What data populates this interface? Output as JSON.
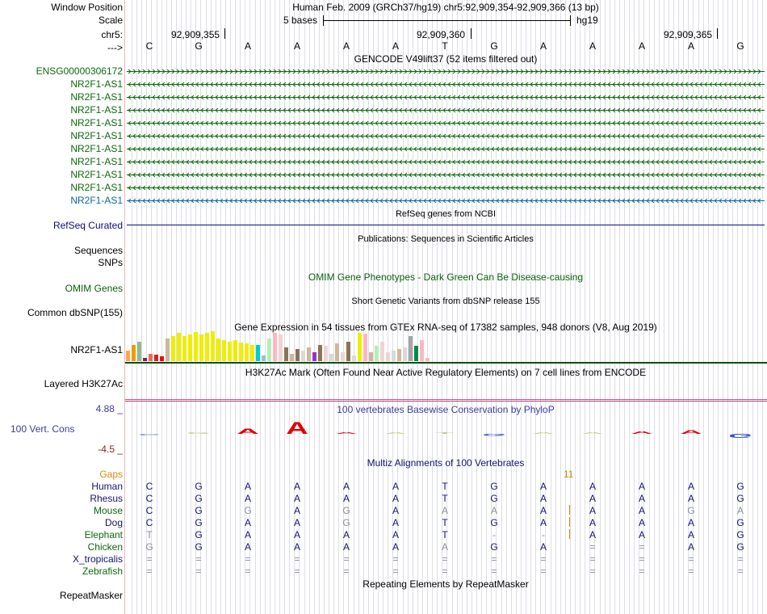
{
  "header": {
    "window_position_label": "Window Position",
    "window_position_text": "Human Feb. 2009 (GRCh37/hg19)   chr5:92,909,354-92,909,366 (13 bp)",
    "scale_label": "Scale",
    "scale_text": "5 bases",
    "scale_assembly": "hg19",
    "chrom_label": "chr5:",
    "coord_ticks": [
      "92,909,355",
      "92,909,360",
      "92,909,365"
    ],
    "strand_label": "--->"
  },
  "sequence": [
    "C",
    "G",
    "A",
    "A",
    "A",
    "A",
    "T",
    "G",
    "A",
    "A",
    "A",
    "A",
    "G"
  ],
  "gencode": {
    "title": "GENCODE V49lift37 (52 items filtered out)",
    "items": [
      {
        "name": "ENSG00000306172",
        "direction": "right"
      },
      {
        "name": "NR2F1-AS1",
        "direction": "left"
      },
      {
        "name": "NR2F1-AS1",
        "direction": "left"
      },
      {
        "name": "NR2F1-AS1",
        "direction": "left"
      },
      {
        "name": "NR2F1-AS1",
        "direction": "left"
      },
      {
        "name": "NR2F1-AS1",
        "direction": "left"
      },
      {
        "name": "NR2F1-AS1",
        "direction": "left"
      },
      {
        "name": "NR2F1-AS1",
        "direction": "left"
      },
      {
        "name": "NR2F1-AS1",
        "direction": "left"
      },
      {
        "name": "NR2F1-AS1",
        "direction": "left"
      },
      {
        "name": "NR2F1-AS1",
        "direction": "left"
      }
    ]
  },
  "refseq": {
    "title": "RefSeq genes from NCBI",
    "label": "RefSeq Curated"
  },
  "publications": {
    "title": "Publications: Sequences in Scientific Articles",
    "label1": "Sequences",
    "label2": "SNPs"
  },
  "omim": {
    "title": "OMIM Gene Phenotypes - Dark Green Can Be Disease-causing",
    "label": "OMIM Genes"
  },
  "dbsnp": {
    "title": "Short Genetic Variants from dbSNP release 155",
    "label": "Common dbSNP(155)"
  },
  "gtex": {
    "title": "Gene Expression in 54 tissues from GTEx RNA-seq of 17382 samples, 948 donors (V8, Aug 2019)",
    "label": "NR2F1-AS1",
    "bars": [
      {
        "v": 0.35,
        "c": "#ffa54f"
      },
      {
        "v": 0.55,
        "c": "#ee9a00"
      },
      {
        "v": 0.65,
        "c": "#8fbc8f"
      },
      {
        "v": 0.12,
        "c": "#8b1c62"
      },
      {
        "v": 0.25,
        "c": "#ee6a50"
      },
      {
        "v": 0.22,
        "c": "#cd2626"
      },
      {
        "v": 0.15,
        "c": "#ff0000"
      },
      {
        "v": 0.75,
        "c": "#cdb79e"
      },
      {
        "v": 0.85,
        "c": "#eeee00"
      },
      {
        "v": 0.95,
        "c": "#eeee00"
      },
      {
        "v": 0.85,
        "c": "#eeee00"
      },
      {
        "v": 0.9,
        "c": "#eeee00"
      },
      {
        "v": 0.98,
        "c": "#eeee00"
      },
      {
        "v": 0.9,
        "c": "#eeee00"
      },
      {
        "v": 0.95,
        "c": "#eeee00"
      },
      {
        "v": 1.0,
        "c": "#eeee00"
      },
      {
        "v": 0.75,
        "c": "#eeee00"
      },
      {
        "v": 0.7,
        "c": "#eeee00"
      },
      {
        "v": 0.65,
        "c": "#eeee00"
      },
      {
        "v": 0.7,
        "c": "#eeee00"
      },
      {
        "v": 0.62,
        "c": "#eeee00"
      },
      {
        "v": 0.6,
        "c": "#eeee00"
      },
      {
        "v": 0.55,
        "c": "#eeee00"
      },
      {
        "v": 0.55,
        "c": "#00cdcd"
      },
      {
        "v": 0.18,
        "c": "#9ac0cd"
      },
      {
        "v": 0.75,
        "c": "#b4eeb4"
      },
      {
        "v": 0.95,
        "c": "#ffb6c1"
      },
      {
        "v": 0.9,
        "c": "#eed5d2"
      },
      {
        "v": 0.45,
        "c": "#8b7355"
      },
      {
        "v": 0.25,
        "c": "#cdb79e"
      },
      {
        "v": 0.4,
        "c": "#8b7355"
      },
      {
        "v": 0.35,
        "c": "#d9d9d9"
      },
      {
        "v": 0.45,
        "c": "#cdb79e"
      },
      {
        "v": 0.3,
        "c": "#9a32cd"
      },
      {
        "v": 0.55,
        "c": "#8b7355"
      },
      {
        "v": 0.5,
        "c": "#eed5d2"
      },
      {
        "v": 0.25,
        "c": "#d9d9d9"
      },
      {
        "v": 0.6,
        "c": "#cdb79e"
      },
      {
        "v": 0.3,
        "c": "#eed5d2"
      },
      {
        "v": 0.65,
        "c": "#8b7355"
      },
      {
        "v": 0.2,
        "c": "#d9d9d9"
      },
      {
        "v": 0.95,
        "c": "#eeee00"
      },
      {
        "v": 0.92,
        "c": "#ffb6c1"
      },
      {
        "v": 0.3,
        "c": "#cdb79e"
      },
      {
        "v": 0.5,
        "c": "#b4eeb4"
      },
      {
        "v": 0.65,
        "c": "#eed5d2"
      },
      {
        "v": 0.3,
        "c": "#eed5d2"
      },
      {
        "v": 0.35,
        "c": "#d9d9d9"
      },
      {
        "v": 0.4,
        "c": "#cdb79e"
      },
      {
        "v": 0.45,
        "c": "#d9d9d9"
      },
      {
        "v": 0.85,
        "c": "#a6a6a6"
      },
      {
        "v": 0.5,
        "c": "#008b45"
      },
      {
        "v": 0.7,
        "c": "#ffb6c1"
      },
      {
        "v": 0.12,
        "c": "#ffb6c1"
      }
    ]
  },
  "h3k27ac": {
    "title": "H3K27Ac Mark (Often Found Near Active Regulatory Elements) on 7 cell lines from ENCODE",
    "label": "Layered H3K27Ac"
  },
  "phylop": {
    "title": "100 vertebrates Basewise Conservation by PhyloP",
    "label": "100 Vert. Cons",
    "max_label": "4.88 _",
    "min_label": "-4.5 _",
    "scores": [
      -0.3,
      0.2,
      1.5,
      3.6,
      0.4,
      0.3,
      0.1,
      -0.6,
      0.0,
      0.0,
      0.8,
      1.0,
      -1.2
    ]
  },
  "multiz": {
    "title": "Multiz Alignments of 100 Vertebrates",
    "gaps_label": "Gaps",
    "gap_count": "11",
    "species": [
      {
        "name": "Human",
        "seq": [
          "C",
          "G",
          "A",
          "A",
          "A",
          "A",
          "T",
          "G",
          "A",
          "A",
          "A",
          "A",
          "G"
        ],
        "dim": [
          0,
          0,
          0,
          0,
          0,
          0,
          0,
          0,
          0,
          0,
          0,
          0,
          0
        ]
      },
      {
        "name": "Rhesus",
        "seq": [
          "C",
          "G",
          "A",
          "A",
          "A",
          "A",
          "T",
          "G",
          "A",
          "A",
          "A",
          "A",
          "G"
        ],
        "dim": [
          0,
          0,
          0,
          0,
          0,
          0,
          0,
          0,
          0,
          0,
          0,
          0,
          0
        ]
      },
      {
        "name": "Mouse",
        "seq": [
          "C",
          "G",
          "G",
          "A",
          "G",
          "A",
          "A",
          "A",
          "A",
          "A",
          "A",
          "G",
          "A"
        ],
        "dim": [
          0,
          0,
          1,
          0,
          1,
          0,
          1,
          1,
          0,
          0,
          0,
          1,
          1
        ]
      },
      {
        "name": "Dog",
        "seq": [
          "C",
          "G",
          "A",
          "A",
          "G",
          "A",
          "T",
          "G",
          "A",
          "A",
          "A",
          "A",
          "G"
        ],
        "dim": [
          0,
          0,
          0,
          0,
          1,
          0,
          0,
          0,
          0,
          0,
          0,
          0,
          0
        ]
      },
      {
        "name": "Elephant",
        "seq": [
          "T",
          "G",
          "A",
          "A",
          "A",
          "A",
          "T",
          "-",
          "-",
          "A",
          "A",
          "A",
          "G"
        ],
        "dim": [
          1,
          0,
          0,
          0,
          0,
          0,
          0,
          1,
          1,
          0,
          0,
          0,
          0
        ]
      },
      {
        "name": "Chicken",
        "seq": [
          "G",
          "G",
          "A",
          "A",
          "A",
          "A",
          "A",
          "G",
          "A",
          "=",
          "=",
          "A",
          "G"
        ],
        "dim": [
          1,
          0,
          0,
          0,
          0,
          0,
          1,
          0,
          0,
          1,
          1,
          0,
          0
        ]
      },
      {
        "name": "X_tropicalis",
        "seq": [
          "=",
          "=",
          "=",
          "=",
          "=",
          "=",
          "=",
          "=",
          "=",
          "=",
          "=",
          "=",
          "="
        ],
        "dim": [
          1,
          1,
          1,
          1,
          1,
          1,
          1,
          1,
          1,
          1,
          1,
          1,
          1
        ]
      },
      {
        "name": "Zebrafish",
        "seq": [
          "=",
          "=",
          "=",
          "=",
          "=",
          "=",
          "=",
          "=",
          "=",
          "=",
          "=",
          "=",
          "="
        ],
        "dim": [
          1,
          1,
          1,
          1,
          1,
          1,
          1,
          1,
          1,
          1,
          1,
          1,
          1
        ]
      }
    ]
  },
  "repeatmasker": {
    "title": "Repeating Elements by RepeatMasker",
    "label": "RepeatMasker"
  },
  "colors": {
    "gencode_green": "#0c6a0c",
    "gencode_blue": "#0c6a9c",
    "refseq_navy": "#0c0c78",
    "omim_green": "#0c600c",
    "phylop_blue": "#3c3ca0",
    "gaps_orange": "#d28c0a",
    "species_navy": "#14146e",
    "species_green": "#0c6a0c",
    "h3k27_line": "#c8508c"
  }
}
